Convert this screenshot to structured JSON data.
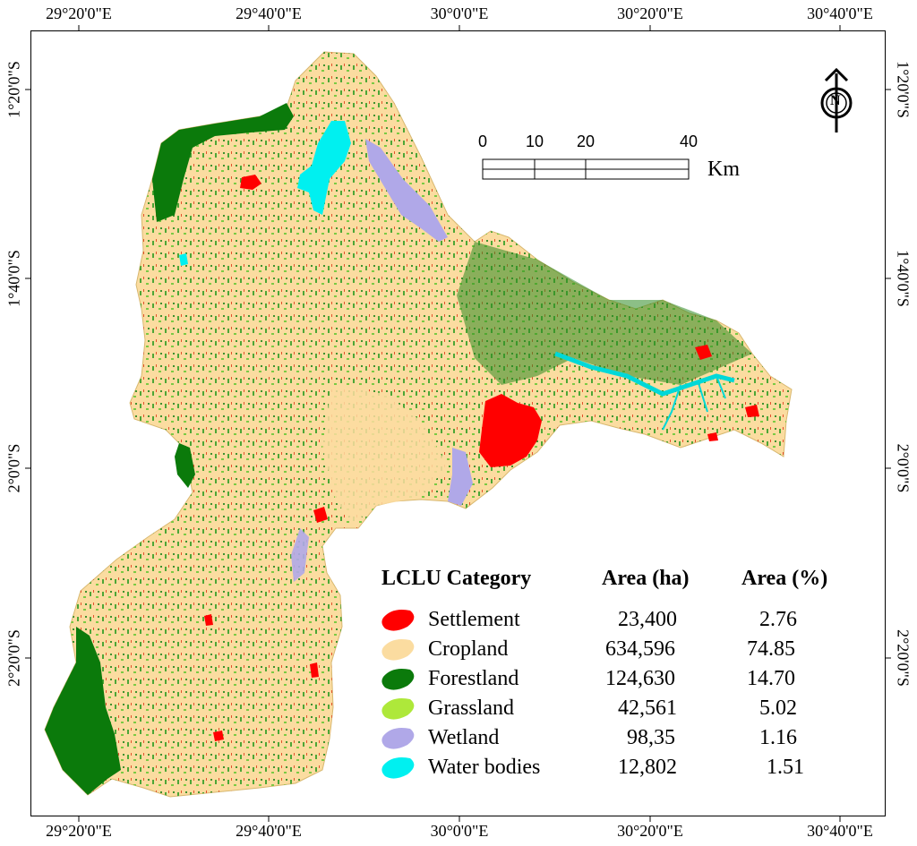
{
  "axes": {
    "top": [
      "29°20'0\"E",
      "29°40'0\"E",
      "30°0'0\"E",
      "30°20'0\"E",
      "30°40'0\"E"
    ],
    "bottom": [
      "29°20'0\"E",
      "29°40'0\"E",
      "30°0'0\"E",
      "30°20'0\"E",
      "30°40'0\"E"
    ],
    "left": [
      "1°20'0\"S",
      "1°40'0\"S",
      "2°0'0\"S",
      "2°20'0\"S"
    ],
    "right": [
      "1°20'0\"S",
      "1°40'0\"S",
      "2°0'0\"S",
      "2°20'0\"S"
    ]
  },
  "north_arrow": {
    "label": "N"
  },
  "scale_bar": {
    "ticks": [
      "0",
      "10",
      "20",
      "40"
    ],
    "unit": "Km"
  },
  "legend": {
    "headers": {
      "category": "LCLU Category",
      "area_ha": "Area (ha)",
      "area_pct": "Area (%)"
    },
    "rows": [
      {
        "name": "Settlement",
        "area_ha": "23,400",
        "area_pct": "2.76",
        "color": "#ff0000"
      },
      {
        "name": "Cropland",
        "area_ha": "634,596",
        "area_pct": "74.85",
        "color": "#fbdca0"
      },
      {
        "name": "Forestland",
        "area_ha": "124,630",
        "area_pct": "14.70",
        "color": "#0b7a0b"
      },
      {
        "name": "Grassland",
        "area_ha": "42,561",
        "area_pct": "5.02",
        "color": "#aee83a"
      },
      {
        "name": "Wetland",
        "area_ha": "98,35",
        "area_pct": "1.16",
        "color": "#b0a8e8"
      },
      {
        "name": "Water bodies",
        "area_ha": "12,802",
        "area_pct": "1.51",
        "color": "#00f0f0"
      }
    ]
  }
}
